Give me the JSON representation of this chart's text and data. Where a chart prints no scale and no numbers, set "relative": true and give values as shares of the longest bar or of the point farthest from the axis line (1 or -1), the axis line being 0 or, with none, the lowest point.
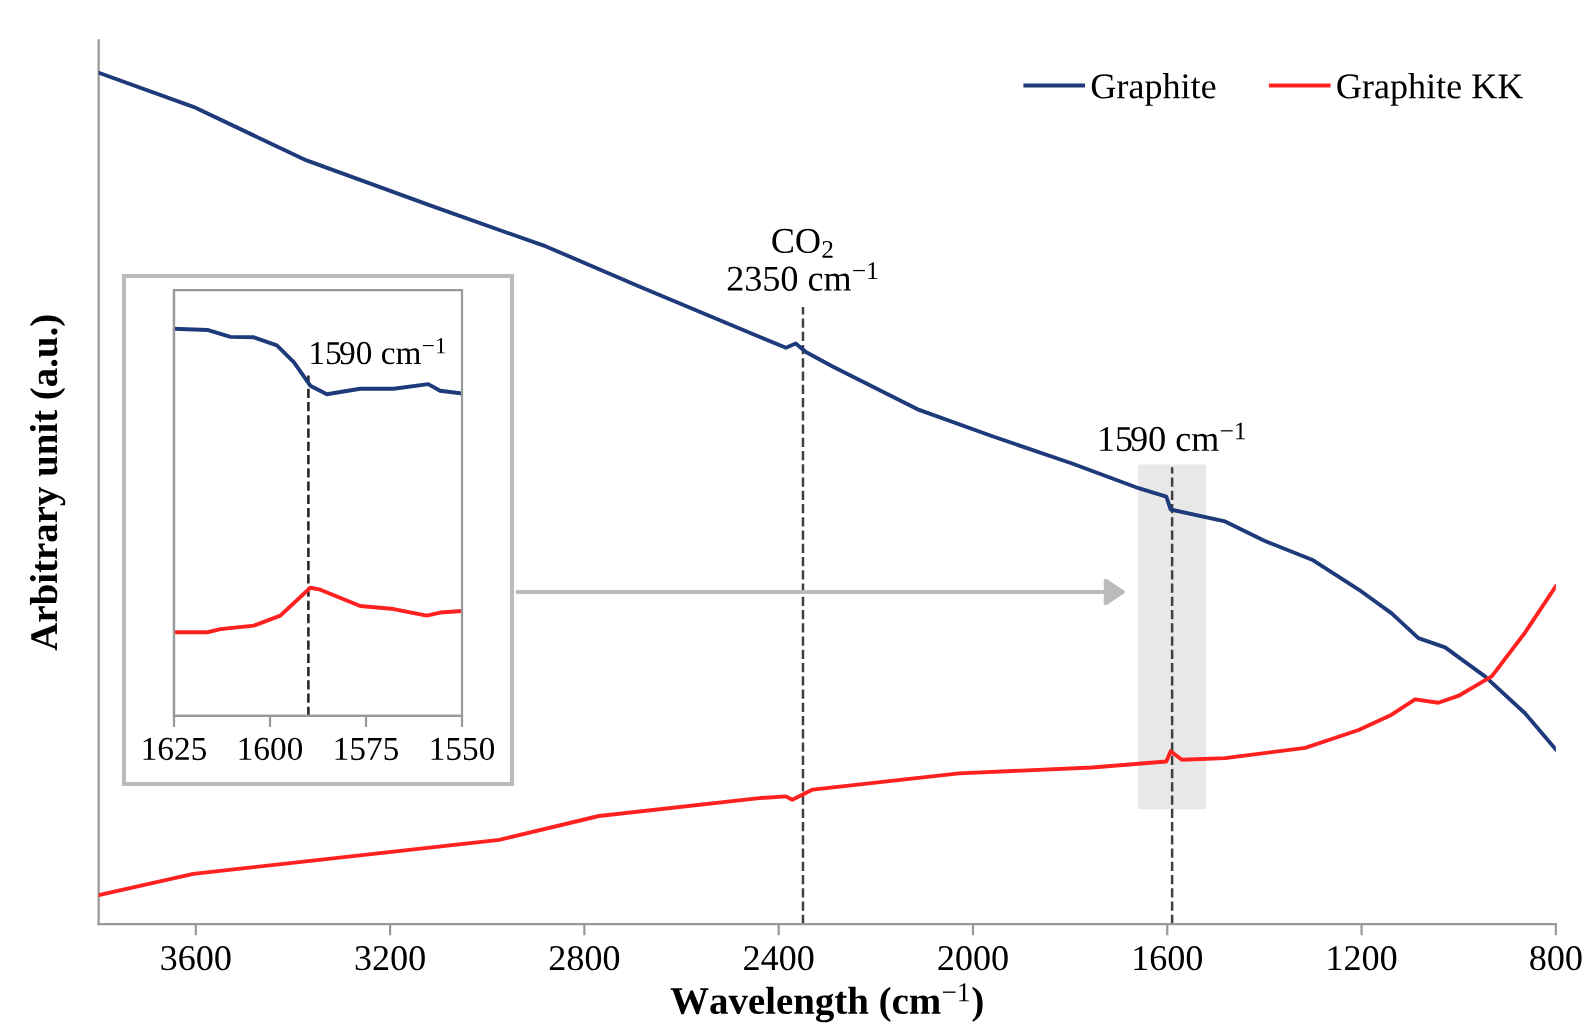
{
  "chart_data": [
    {
      "type": "line",
      "xlabel": "Wavelength (cm$^{−1}$)",
      "ylabel": "Arbitrary unit (a.u.)",
      "relative": true,
      "xlim": [
        3800,
        800
      ],
      "xticks": [
        3600,
        3200,
        2800,
        2400,
        2000,
        1600,
        1200,
        800
      ],
      "tick_labels": "x",
      "grid": false,
      "legend": "top right",
      "marker": "none",
      "line_style": "solid",
      "series": [
        {
          "name": "Graphite",
          "color": "#1f3a7a",
          "x": [
            3800,
            3605,
            3372,
            3112,
            2879,
            2687,
            2440,
            2385,
            2365,
            2344,
            2289,
            2111,
            1960,
            1796,
            1659,
            1602,
            1593,
            1481,
            1399,
            1302,
            1206,
            1138,
            1083,
            1028,
            946,
            864,
            800
          ],
          "values": [
            1.0,
            0.96,
            0.897,
            0.843,
            0.796,
            0.749,
            0.69,
            0.677,
            0.682,
            0.672,
            0.655,
            0.604,
            0.573,
            0.541,
            0.512,
            0.502,
            0.487,
            0.473,
            0.45,
            0.428,
            0.393,
            0.365,
            0.336,
            0.325,
            0.291,
            0.248,
            0.205
          ]
        },
        {
          "name": "Graphite KK",
          "color": "#ff2020",
          "x": [
            3800,
            3605,
            2975,
            2770,
            2440,
            2385,
            2372,
            2330,
            2029,
            1755,
            1602,
            1593,
            1570,
            1481,
            1316,
            1206,
            1138,
            1090,
            1042,
            1001,
            932,
            864,
            800
          ],
          "values": [
            0.034,
            0.059,
            0.099,
            0.127,
            0.148,
            0.15,
            0.146,
            0.158,
            0.177,
            0.184,
            0.191,
            0.203,
            0.193,
            0.195,
            0.207,
            0.228,
            0.246,
            0.264,
            0.26,
            0.268,
            0.291,
            0.342,
            0.397
          ]
        }
      ],
      "ref_lines": [
        {
          "axis": "x",
          "value": 2350,
          "label": "CO$_{2}$\n2350 cm$^{−1}$",
          "color": "#404040",
          "line_style": "dashed"
        },
        {
          "axis": "x",
          "value": 1590,
          "label": "1590 cm$^{−1}$",
          "color": "#404040",
          "line_style": "dashed"
        }
      ],
      "bands": [
        {
          "axis": "x",
          "from": 1660,
          "to": 1520,
          "color": "#e8e8e8"
        }
      ]
    },
    {
      "type": "line",
      "relative": true,
      "xlim": [
        1625,
        1550
      ],
      "xticks": [
        1625,
        1600,
        1575,
        1550
      ],
      "tick_labels": "x",
      "grid": false,
      "marker": "none",
      "line_style": "solid",
      "series": [
        {
          "color": "#1f3a7a",
          "x": [
            1625,
            1616.3,
            1610.3,
            1604.2,
            1598.2,
            1593.8,
            1589.5,
            1585.2,
            1576.5,
            1567.8,
            1558.8,
            1555.7,
            1550
          ],
          "values": [
            1.0,
            0.997,
            0.979,
            0.978,
            0.957,
            0.914,
            0.853,
            0.831,
            0.845,
            0.845,
            0.857,
            0.84,
            0.833
          ]
        },
        {
          "color": "#ff2020",
          "x": [
            1625,
            1616.3,
            1612.9,
            1604.2,
            1597.3,
            1589.5,
            1586.9,
            1576.5,
            1567.8,
            1559.2,
            1555.7,
            1550
          ],
          "values": [
            0.216,
            0.216,
            0.224,
            0.233,
            0.259,
            0.331,
            0.326,
            0.284,
            0.276,
            0.259,
            0.267,
            0.271
          ]
        }
      ],
      "ref_lines": [
        {
          "axis": "x",
          "value": 1590,
          "label": "1590 cm$^{−1}$",
          "color": "#202020",
          "line_style": "dashed"
        }
      ]
    }
  ]
}
